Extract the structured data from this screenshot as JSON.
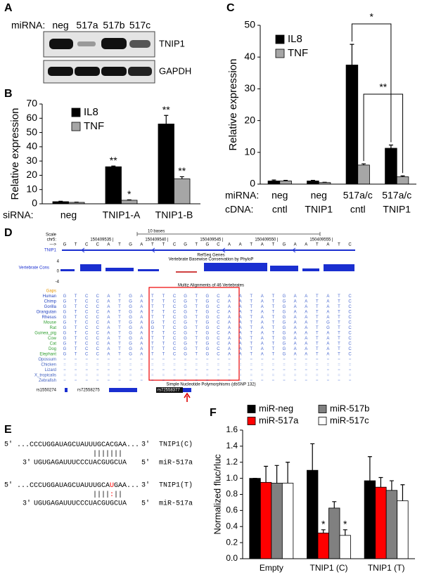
{
  "panel_labels": [
    "A",
    "B",
    "C",
    "D",
    "E",
    "F"
  ],
  "blot": {
    "row_label": "miRNA:",
    "lanes": [
      "neg",
      "517a",
      "517b",
      "517c"
    ],
    "bands": [
      "TNIP1",
      "GAPDH"
    ]
  },
  "chart_data": [
    {
      "type": "bar",
      "ylabel": "Relative expression",
      "category_label": "siRNA:",
      "categories": [
        "neg",
        "TNIP1-A",
        "TNIP1-B"
      ],
      "ylim": [
        0,
        70
      ],
      "yticks": [
        0,
        10,
        20,
        30,
        40,
        50,
        60,
        70
      ],
      "legend": "upper left",
      "series": [
        {
          "name": "IL8",
          "color": "#000000",
          "values": [
            1.5,
            26,
            56
          ],
          "errors": [
            0.3,
            0.5,
            6
          ],
          "significance": [
            null,
            "**",
            "**"
          ]
        },
        {
          "name": "TNF",
          "color": "#a6a6a6",
          "values": [
            1,
            2.5,
            17.5
          ],
          "errors": [
            0.2,
            0.3,
            1.5
          ],
          "significance": [
            null,
            "*",
            "**"
          ]
        }
      ]
    },
    {
      "type": "bar",
      "ylabel": "Relative expression",
      "category_label": "miRNA:",
      "category_label2": "cDNA:",
      "categories": [
        "neg",
        "neg",
        "517a/c",
        "517a/c"
      ],
      "categories2": [
        "cntl",
        "TNIP1",
        "cntl",
        "TNIP1"
      ],
      "ylim": [
        0,
        50
      ],
      "yticks": [
        0,
        10,
        20,
        30,
        40,
        50
      ],
      "legend": "upper left",
      "series": [
        {
          "name": "IL8",
          "color": "#000000",
          "values": [
            1,
            1,
            37.5,
            11.3
          ],
          "errors": [
            0.3,
            0.2,
            6.5,
            1
          ]
        },
        {
          "name": "TNF",
          "color": "#a6a6a6",
          "values": [
            1,
            0.5,
            6,
            2.3
          ],
          "errors": [
            0.2,
            0.1,
            0.4,
            0.3
          ]
        }
      ],
      "comparisons": [
        {
          "label": "*"
        },
        {
          "label": "**"
        }
      ]
    },
    {
      "type": "bar",
      "ylabel": "Normalized fluc/rluc",
      "categories": [
        "Empty",
        "TNIP1 (C)",
        "TNIP1 (T)"
      ],
      "ylim": [
        0,
        1.6
      ],
      "yticks": [
        {
          "value": 0,
          "label": "0.0"
        },
        0.2,
        0.4,
        0.6,
        0.8,
        {
          "value": 1,
          "label": "1.0"
        },
        1.2,
        1.4,
        1.6
      ],
      "legend": "top",
      "legend_columns": 2,
      "series": [
        {
          "name": "miR-neg",
          "color": "#000000",
          "values": [
            1.0,
            1.1,
            0.97
          ],
          "errors": [
            0,
            0.33,
            0.3
          ]
        },
        {
          "name": "miR-517a",
          "color": "#ff0000",
          "values": [
            0.95,
            0.32,
            0.89
          ],
          "errors": [
            0.2,
            0.04,
            0.12
          ],
          "significance": [
            null,
            "*",
            null
          ]
        },
        {
          "name": "miR-517b",
          "color": "#808080",
          "values": [
            0.94,
            0.63,
            0.85
          ],
          "errors": [
            0.22,
            0.08,
            0.12
          ]
        },
        {
          "name": "miR-517c",
          "color": "#ffffff",
          "values": [
            0.94,
            0.29,
            0.72
          ],
          "errors": [
            0.26,
            0.07,
            0.2
          ],
          "significance": [
            null,
            "*",
            null
          ]
        }
      ]
    }
  ],
  "browser": {
    "scale_label": "Scale",
    "scale_text": "10 bases",
    "chrom": "chr5:",
    "positions": [
      "150409535",
      "150409540",
      "150409545",
      "150409550",
      "150409555"
    ],
    "strand": "--->",
    "reference": "GTCCATGATTCGTGCAATATGAATATC",
    "gene": "TNIP1",
    "gene_track": "RefSeq Genes",
    "cons_label": "Vertebrate Cons",
    "cons_track": "Vertebrate Basewise Conservation by PhyloP",
    "cons_axis": [
      "4",
      "0",
      "-4"
    ],
    "multiz": "Multiz Alignments of 46 Vertebrates",
    "species": [
      {
        "name": "Gaps",
        "color": "#e69500"
      },
      {
        "name": "Human",
        "color": "#1f3fbf",
        "sequence": "GTCCATGATTCGTGCAATATGAATATC"
      },
      {
        "name": "Chimp",
        "color": "#1f3fbf",
        "sequence": "GTCCATGATTCGTGCAATATGAATATC"
      },
      {
        "name": "Gorilla",
        "color": "#1f3fbf",
        "sequence": "GTCCATGATTCGTGCAATATGAATATC"
      },
      {
        "name": "Orangutan",
        "color": "#1f3fbf",
        "sequence": "GTCCATGATTCGTGCAATATGAATATC"
      },
      {
        "name": "Rhesus",
        "color": "#1f3fbf",
        "sequence": "GTCCATGATTCGTGCAATATGAATATC"
      },
      {
        "name": "Mouse",
        "color": "#2e9e2e",
        "sequence": "GTCCATGAGTCGTGCAATATGAATGTC"
      },
      {
        "name": "Rat",
        "color": "#2e9e2e",
        "sequence": "GTCCATGAGTCGTGCAATATGAATGTC"
      },
      {
        "name": "Guinea_pig",
        "color": "#2e9e2e",
        "sequence": "GTCCATGATTCGTGCAATATGAATATC"
      },
      {
        "name": "Cow",
        "color": "#2e9e2e",
        "sequence": "GTCCATGATTCGTGCAATATGAATATC"
      },
      {
        "name": "Cat",
        "color": "#2e9e2e",
        "sequence": "GTCCATGATTCGTGCAATATGAATATC"
      },
      {
        "name": "Dog",
        "color": "#2e9e2e",
        "sequence": "GTCCATGATTCGTGCAATATGAATATC"
      },
      {
        "name": "Elephant",
        "color": "#2e9e2e",
        "sequence": "GTCCATGATTCGTGCAATATGAATATC"
      },
      {
        "name": "Opossum",
        "color": "#3f5fbf",
        "sequence": "==========================="
      },
      {
        "name": "Chicken",
        "color": "#3f5fbf",
        "sequence": "==========================="
      },
      {
        "name": "Lizard",
        "color": "#3f5fbf",
        "sequence": "==========================="
      },
      {
        "name": "X_tropicalis",
        "color": "#3f5fbf",
        "sequence": "==========================="
      },
      {
        "name": "Zebrafish",
        "color": "#3f5fbf",
        "sequence": "==========================="
      }
    ],
    "snp_track": "Simple Nucleotide Polymorphisms (dbSNP 132)",
    "snps": [
      "rs1550274",
      "rs72558275",
      "rs72558377"
    ]
  },
  "mirna_pairing": {
    "pairs": [
      {
        "top_left": "5'",
        "top_seq": [
          {
            "text": "...CCCUGGAUAGCUAUUUGCACGAA...",
            "color": "#000000"
          }
        ],
        "top_right": "3'",
        "top_name": "TNIP1(C)",
        "pairing": [
          {
            "text": "|||||||",
            "color": "#000000"
          }
        ],
        "bottom_left": "3'",
        "bottom_seq": "UGUGAGAUUUCCCUACGUGCUA",
        "bottom_right": "5'",
        "bottom_name": "miR-517a"
      },
      {
        "top_left": "5'",
        "top_seq": [
          {
            "text": "...CCCUGGAUAGCUAUUUGCA",
            "color": "#000000"
          },
          {
            "text": "U",
            "color": "#ff0000"
          },
          {
            "text": "GAA...",
            "color": "#000000"
          }
        ],
        "top_right": "3'",
        "top_name": "TNIP1(T)",
        "pairing": [
          {
            "text": "||||",
            "color": "#000000"
          },
          {
            "text": ":",
            "color": "#ff0000"
          },
          {
            "text": "||",
            "color": "#000000"
          }
        ],
        "bottom_left": "3'",
        "bottom_seq": "UGUGAGAUUUCCCUACGUGCUA",
        "bottom_right": "5'",
        "bottom_name": "miR-517a"
      }
    ]
  }
}
